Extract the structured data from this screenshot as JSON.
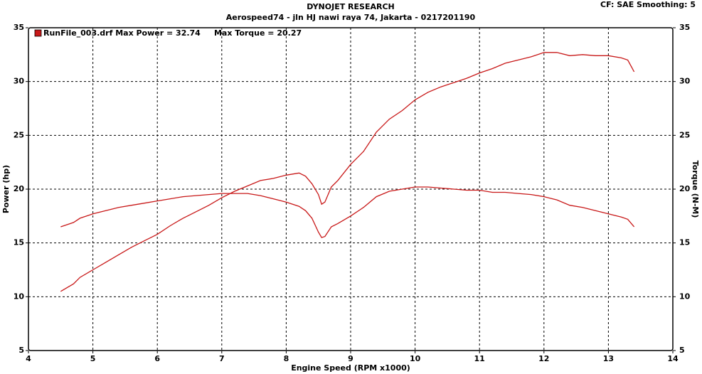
{
  "chart_data": {
    "type": "line",
    "title": "DYNOJET RESEARCH",
    "subtitle": "Aerospeed74 - jln HJ nawi raya 74, Jakarta  - 0217201190",
    "corner_note": "CF: SAE  Smoothing: 5",
    "legend_text": "RunFile_003.drf Max Power = 32.74     Max Torque = 20.27",
    "legend_color": "#c81818",
    "x_label": "Engine Speed (RPM x1000)",
    "y_label": "Power (hp)",
    "y2_label": "Torque (N-M)",
    "xlim": [
      4,
      14
    ],
    "xticks": [
      4,
      5,
      6,
      7,
      8,
      9,
      10,
      11,
      12,
      13,
      14
    ],
    "ylim": [
      5,
      35
    ],
    "yticks": [
      5,
      10,
      15,
      20,
      25,
      30,
      35
    ],
    "y2lim": [
      5,
      35
    ],
    "y2ticks": [
      5,
      10,
      15,
      20,
      25,
      30,
      35
    ],
    "grid": true,
    "x": [
      4.5,
      4.7,
      4.8,
      5.0,
      5.2,
      5.4,
      5.6,
      5.8,
      6.0,
      6.2,
      6.4,
      6.6,
      6.8,
      7.0,
      7.2,
      7.4,
      7.6,
      7.8,
      8.0,
      8.2,
      8.3,
      8.4,
      8.5,
      8.55,
      8.6,
      8.7,
      8.8,
      9.0,
      9.2,
      9.4,
      9.6,
      9.8,
      10.0,
      10.2,
      10.4,
      10.6,
      10.8,
      11.0,
      11.2,
      11.4,
      11.6,
      11.8,
      12.0,
      12.2,
      12.4,
      12.6,
      12.8,
      13.0,
      13.2,
      13.3,
      13.4
    ],
    "series": [
      {
        "color": "#c81818",
        "values": [
          10.5,
          11.2,
          11.8,
          12.5,
          13.2,
          13.9,
          14.6,
          15.2,
          15.8,
          16.6,
          17.3,
          17.9,
          18.5,
          19.2,
          19.8,
          20.3,
          20.8,
          21.0,
          21.3,
          21.5,
          21.2,
          20.5,
          19.5,
          18.6,
          18.8,
          20.2,
          20.8,
          22.3,
          23.5,
          25.3,
          26.5,
          27.3,
          28.3,
          29.0,
          29.5,
          29.9,
          30.3,
          30.8,
          31.2,
          31.7,
          32.0,
          32.3,
          32.7,
          32.7,
          32.4,
          32.5,
          32.4,
          32.4,
          32.2,
          32.0,
          30.9
        ]
      },
      {
        "color": "#c81818",
        "axis": "y2",
        "values": [
          16.5,
          16.9,
          17.3,
          17.7,
          18.0,
          18.3,
          18.5,
          18.7,
          18.9,
          19.1,
          19.3,
          19.4,
          19.5,
          19.6,
          19.6,
          19.6,
          19.4,
          19.1,
          18.8,
          18.4,
          18.0,
          17.3,
          16.0,
          15.5,
          15.6,
          16.5,
          16.8,
          17.5,
          18.3,
          19.3,
          19.8,
          20.0,
          20.2,
          20.2,
          20.1,
          20.0,
          19.9,
          19.9,
          19.7,
          19.7,
          19.6,
          19.5,
          19.3,
          19.0,
          18.5,
          18.3,
          18.0,
          17.7,
          17.4,
          17.2,
          16.5
        ]
      }
    ]
  }
}
